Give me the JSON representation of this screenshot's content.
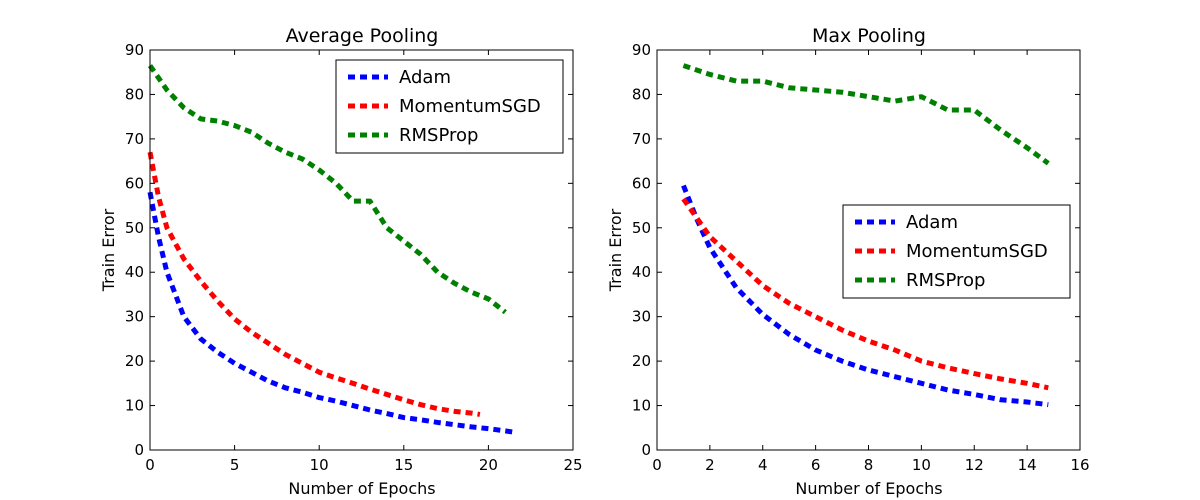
{
  "chart_data": [
    {
      "type": "line",
      "title": "Average Pooling",
      "xlabel": "Number of Epochs",
      "ylabel": "Train Error",
      "xlim": [
        0,
        25
      ],
      "ylim": [
        0,
        90
      ],
      "xticks": [
        0,
        5,
        10,
        15,
        20,
        25
      ],
      "yticks": [
        0,
        10,
        20,
        30,
        40,
        50,
        60,
        70,
        80,
        90
      ],
      "grid": false,
      "legend_position": "top-right",
      "series": [
        {
          "name": "Adam",
          "color": "#0000ff",
          "x": [
            0,
            0.5,
            1,
            2,
            3,
            4,
            5,
            6,
            7,
            8,
            9,
            10,
            11,
            12,
            13,
            14,
            15,
            16,
            17,
            18,
            19,
            20,
            21,
            21.5
          ],
          "y": [
            58,
            48,
            40,
            30,
            25,
            22,
            19.5,
            17.5,
            15.5,
            14,
            13,
            11.8,
            11,
            10,
            9,
            8.2,
            7.3,
            6.8,
            6.2,
            5.7,
            5.2,
            4.8,
            4.3,
            4
          ]
        },
        {
          "name": "MomentumSGD",
          "color": "#ff0000",
          "x": [
            0,
            0.5,
            1,
            2,
            3,
            4,
            5,
            6,
            7,
            8,
            9,
            10,
            11,
            12,
            13,
            14,
            15,
            16,
            17,
            18,
            19,
            19.5
          ],
          "y": [
            67,
            57,
            50,
            43,
            38,
            33.5,
            29.5,
            26.5,
            24,
            21.5,
            19.5,
            17.5,
            16.2,
            15,
            13.7,
            12.5,
            11.3,
            10.2,
            9.3,
            8.7,
            8.3,
            8
          ]
        },
        {
          "name": "RMSProp",
          "color": "#008000",
          "x": [
            0,
            1,
            2,
            3,
            4,
            5,
            6,
            7,
            8,
            9,
            10,
            11,
            12,
            13,
            14,
            15,
            16,
            17,
            18,
            19,
            20,
            21
          ],
          "y": [
            86.5,
            81,
            77,
            74.5,
            74,
            73,
            71.5,
            69,
            67,
            65.5,
            63,
            60,
            56,
            56,
            50,
            47,
            44,
            40,
            37.5,
            35.5,
            34,
            31
          ]
        }
      ]
    },
    {
      "type": "line",
      "title": "Max Pooling",
      "xlabel": "Number of Epochs",
      "ylabel": "Train Error",
      "xlim": [
        0,
        16
      ],
      "ylim": [
        0,
        90
      ],
      "xticks": [
        0,
        2,
        4,
        6,
        8,
        10,
        12,
        14,
        16
      ],
      "yticks": [
        0,
        10,
        20,
        30,
        40,
        50,
        60,
        70,
        80,
        90
      ],
      "grid": false,
      "legend_position": "center-right",
      "series": [
        {
          "name": "Adam",
          "color": "#0000ff",
          "x": [
            1,
            1.5,
            2,
            3,
            4,
            5,
            6,
            7,
            8,
            9,
            10,
            11,
            12,
            13,
            14,
            14.8
          ],
          "y": [
            59.5,
            52,
            45.5,
            36.5,
            30.5,
            26,
            22.5,
            20,
            18,
            16.5,
            15,
            13.5,
            12.5,
            11.3,
            10.8,
            10.2
          ]
        },
        {
          "name": "MomentumSGD",
          "color": "#ff0000",
          "x": [
            1,
            2,
            3,
            4,
            5,
            6,
            7,
            8,
            9,
            10,
            11,
            12,
            13,
            14,
            14.8
          ],
          "y": [
            56.5,
            48,
            42.5,
            37,
            33,
            30,
            27,
            24.5,
            22.5,
            20,
            18.5,
            17.2,
            16,
            15,
            14
          ]
        },
        {
          "name": "RMSProp",
          "color": "#008000",
          "x": [
            1,
            2,
            3,
            4,
            5,
            6,
            7,
            8,
            9,
            10,
            11,
            12,
            13,
            14,
            14.8
          ],
          "y": [
            86.5,
            84.5,
            83,
            83,
            81.5,
            81,
            80.5,
            79.5,
            78.5,
            79.5,
            76.5,
            76.5,
            72,
            68,
            64.5
          ]
        }
      ]
    }
  ]
}
